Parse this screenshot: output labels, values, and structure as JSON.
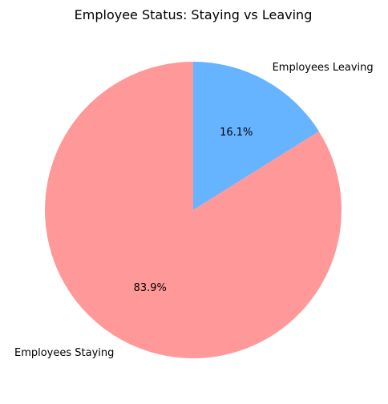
{
  "chart_data": {
    "type": "pie",
    "title": "Employee Status: Staying vs Leaving",
    "categories": [
      "Employees Staying",
      "Employees Leaving"
    ],
    "values": [
      83.9,
      16.1
    ],
    "value_labels": [
      "83.9%",
      "16.1%"
    ],
    "colors": [
      "#ff9999",
      "#66b3ff"
    ],
    "legend": "none"
  }
}
